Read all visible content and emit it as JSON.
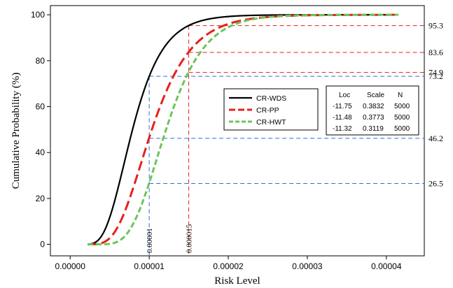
{
  "chart_data": {
    "type": "line",
    "xlabel": "Risk Level",
    "ylabel": "Cumulative Probability (%)",
    "xlim": [
      -2.5e-06,
      4.48e-05
    ],
    "ylim": [
      -5,
      104
    ],
    "x_ticks": [
      {
        "value": 0,
        "label": "0.00000"
      },
      {
        "value": 1e-05,
        "label": "0.00001"
      },
      {
        "value": 2e-05,
        "label": "0.00002"
      },
      {
        "value": 3e-05,
        "label": "0.00003"
      },
      {
        "value": 4e-05,
        "label": "0.00004"
      }
    ],
    "y_ticks": [
      {
        "value": 0,
        "label": "0"
      },
      {
        "value": 20,
        "label": "20"
      },
      {
        "value": 40,
        "label": "40"
      },
      {
        "value": 60,
        "label": "60"
      },
      {
        "value": 80,
        "label": "80"
      },
      {
        "value": 100,
        "label": "100"
      }
    ],
    "x_range": [
      2.2e-06,
      4.15e-05
    ],
    "series": [
      {
        "name": "CR-WDS",
        "color": "#000000",
        "style": "solid",
        "loc": -11.75,
        "scale": 0.3832,
        "n": 5000
      },
      {
        "name": "CR-PP",
        "color": "#e8201b",
        "style": "dashed",
        "loc": -11.48,
        "scale": 0.3773,
        "n": 5000
      },
      {
        "name": "CR-HWT",
        "color": "#6cc45a",
        "style": "dashed",
        "loc": -11.32,
        "scale": 0.3119,
        "n": 5000
      }
    ],
    "stats_table": {
      "headers": [
        "Loc",
        "Scale",
        "N"
      ],
      "rows": [
        [
          "-11.75",
          "0.3832",
          "5000"
        ],
        [
          "-11.48",
          "0.3773",
          "5000"
        ],
        [
          "-11.32",
          "0.3119",
          "5000"
        ]
      ]
    },
    "reference_lines": {
      "blue": {
        "color": "#2f6fd6",
        "x": [
          {
            "value": 1e-05,
            "label": "0.00001"
          }
        ],
        "y": [
          {
            "value": 73.2,
            "label": "73.2"
          },
          {
            "value": 46.2,
            "label": "46.2"
          },
          {
            "value": 26.5,
            "label": "26.5"
          }
        ]
      },
      "red": {
        "color": "#e8201b",
        "x": [
          {
            "value": 1.5e-05,
            "label": "0.000015"
          }
        ],
        "y": [
          {
            "value": 95.3,
            "label": "95.3"
          },
          {
            "value": 83.6,
            "label": "83.6"
          },
          {
            "value": 74.9,
            "label": "74.9"
          }
        ]
      }
    },
    "legend_position": "center-right",
    "grid": false
  }
}
